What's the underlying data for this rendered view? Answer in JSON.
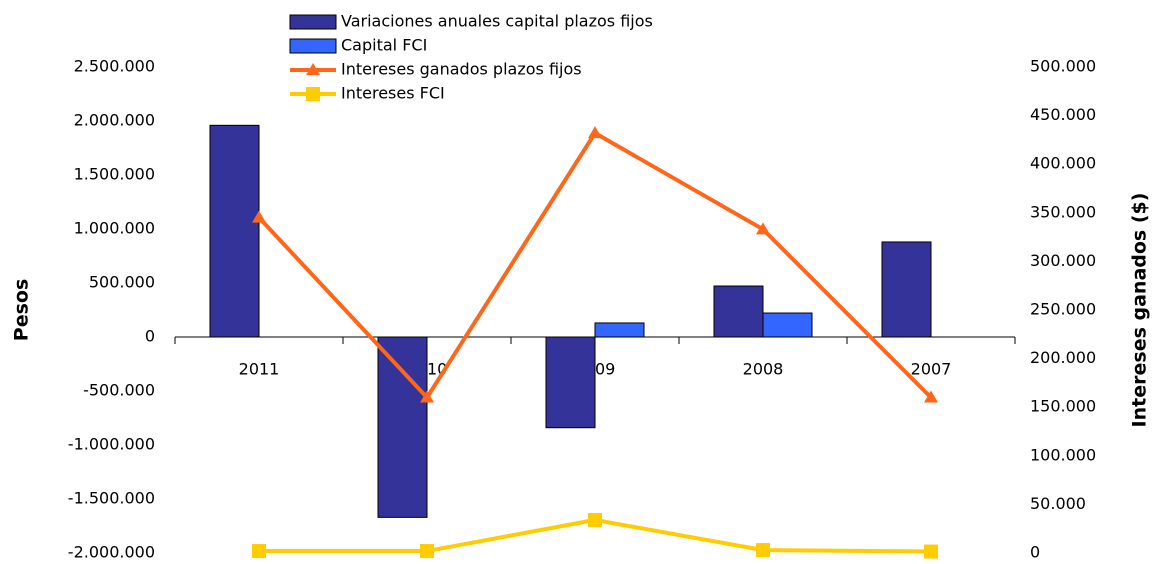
{
  "chart_data": {
    "type": "bar_line",
    "categories": [
      "2011",
      "2010",
      "2009",
      "2008",
      "2007"
    ],
    "ylabel": "Pesos",
    "y2label": "Intereses ganados ($)",
    "ylim": [
      -2000000,
      2500000
    ],
    "yticks": [
      {
        "value": -2000000,
        "label": "-2.000.000"
      },
      {
        "value": -1500000,
        "label": "-1.500.000"
      },
      {
        "value": -1000000,
        "label": "-1.000.000"
      },
      {
        "value": -500000,
        "label": "-500.000"
      },
      0,
      {
        "value": 500000,
        "label": "500.000"
      },
      {
        "value": 1000000,
        "label": "1.000.000"
      },
      {
        "value": 1500000,
        "label": "1.500.000"
      },
      {
        "value": 2000000,
        "label": "2.000.000"
      },
      {
        "value": 2500000,
        "label": "2.500.000"
      }
    ],
    "y2lim": [
      0,
      500000
    ],
    "y2ticks": [
      0,
      {
        "value": 50000,
        "label": "50.000"
      },
      {
        "value": 100000,
        "label": "100.000"
      },
      {
        "value": 150000,
        "label": "150.000"
      },
      {
        "value": 200000,
        "label": "200.000"
      },
      {
        "value": 250000,
        "label": "250.000"
      },
      {
        "value": 300000,
        "label": "300.000"
      },
      {
        "value": 350000,
        "label": "350.000"
      },
      {
        "value": 400000,
        "label": "400.000"
      },
      {
        "value": 450000,
        "label": "450.000"
      },
      {
        "value": 500000,
        "label": "500.000"
      }
    ],
    "legend": "top",
    "series": [
      {
        "name": "Variaciones anuales capital plazos fijos",
        "type": "bar",
        "color": "#333399",
        "values": [
          1960000,
          -1670000,
          -840000,
          472000,
          880000
        ]
      },
      {
        "name": "Capital FCI",
        "type": "bar",
        "color": "#3366ff",
        "values": [
          0,
          0,
          130000,
          222000,
          0
        ]
      },
      {
        "name": "Intereses ganados plazos fijos",
        "type": "line",
        "marker": "triangle",
        "axis": "y2",
        "color": "#ff6619",
        "values": [
          345000,
          160000,
          432000,
          333000,
          160000
        ]
      },
      {
        "name": "Intereses FCI",
        "type": "line",
        "marker": "square",
        "axis": "y2",
        "color": "#ffcc00",
        "values": [
          2000,
          2000,
          34000,
          3000,
          1500
        ]
      }
    ]
  }
}
